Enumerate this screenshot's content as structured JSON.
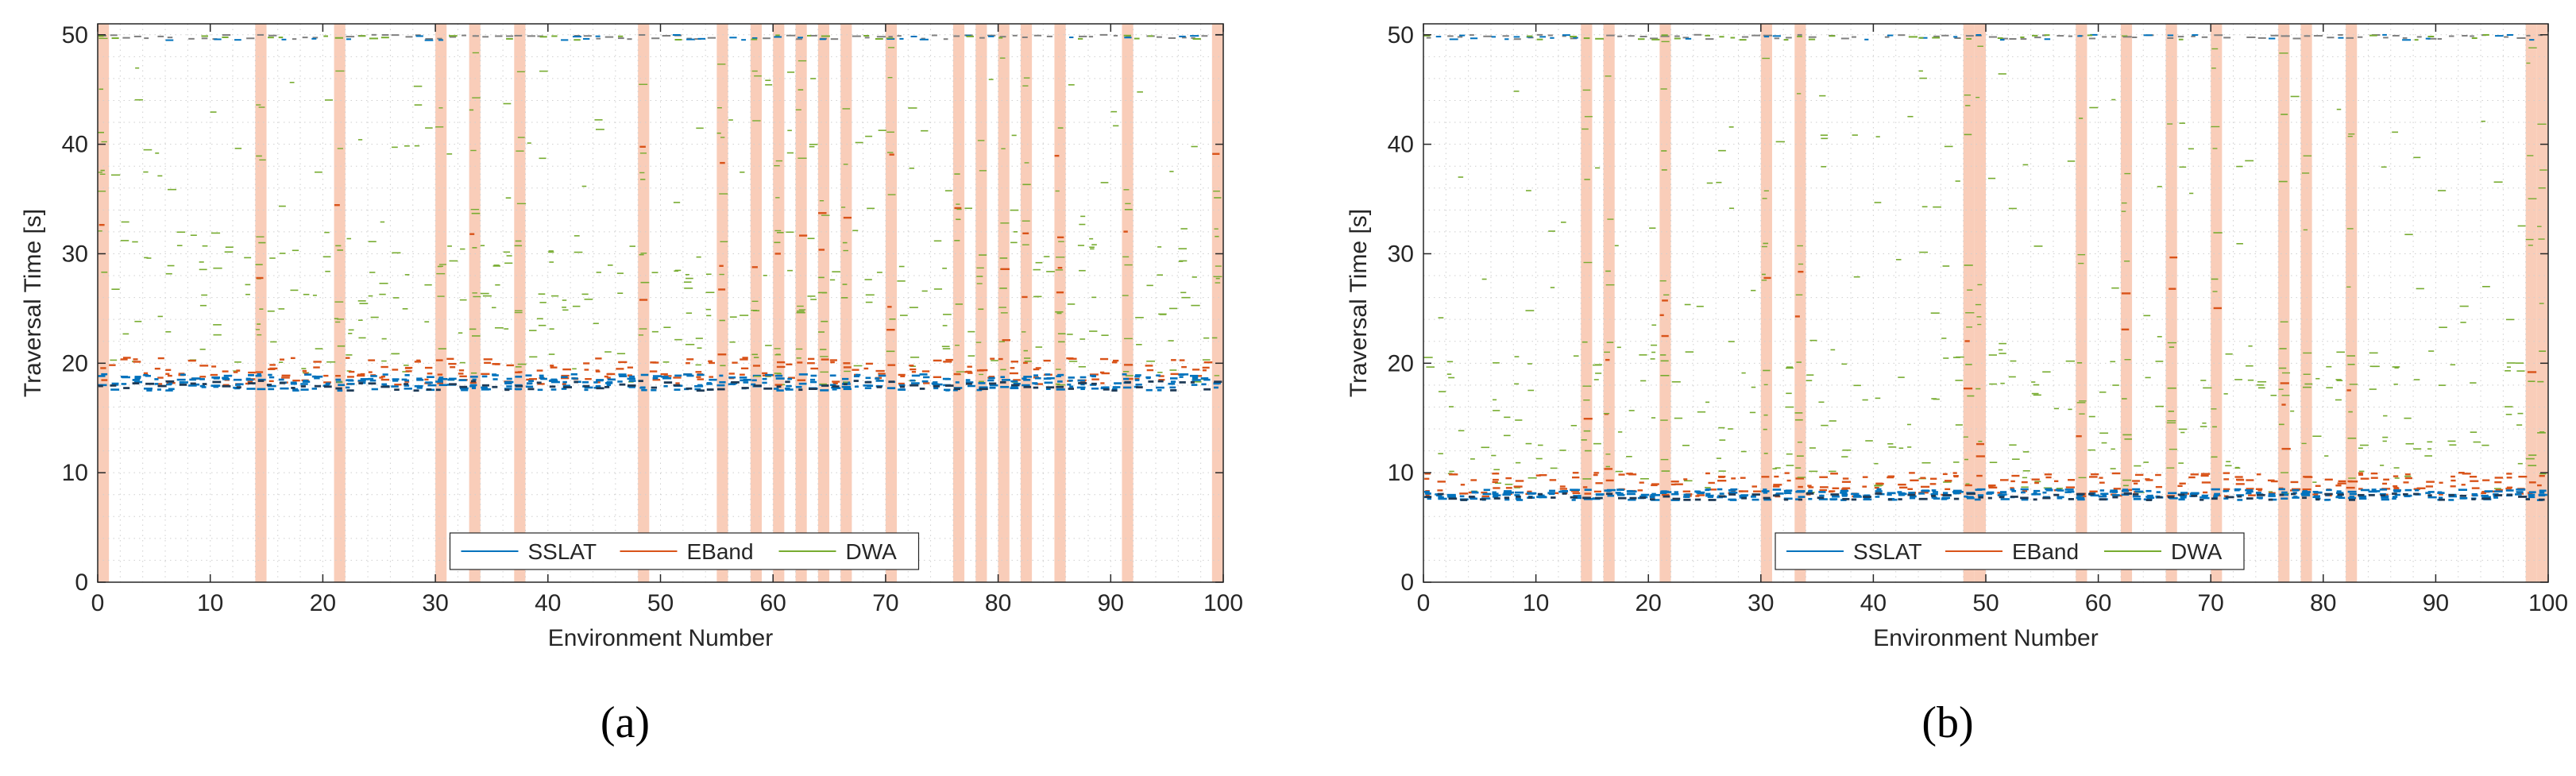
{
  "figure": {
    "panel_labels": [
      "(a)",
      "(b)"
    ]
  },
  "chart_data": [
    {
      "id": "a",
      "type": "scatter",
      "panel_label": "(a)",
      "title": "",
      "xlabel": "Environment Number",
      "ylabel": "Traversal Time [s]",
      "xlim": [
        0,
        100
      ],
      "ylim": [
        0,
        51
      ],
      "xticks": [
        0,
        10,
        20,
        30,
        40,
        50,
        60,
        70,
        80,
        90,
        100
      ],
      "yticks": [
        0,
        10,
        20,
        30,
        40,
        50
      ],
      "grid": true,
      "legend": {
        "location": "bottom-center",
        "entries": [
          "SSLAT",
          "EBand",
          "DWA"
        ]
      },
      "series_colors": {
        "SSLAT": "#0072bd",
        "EBand": "#d95319",
        "DWA": "#77ac30"
      },
      "failure_band_color": "#f9cdb9",
      "timeout_value": 50,
      "failed_environments": [
        0,
        14,
        21,
        30,
        33,
        37,
        48,
        55,
        58,
        60,
        62,
        64,
        66,
        70,
        76,
        78,
        80,
        82,
        85,
        91,
        99
      ],
      "series_summary": [
        {
          "name": "SSLAT",
          "typical_range": [
            17.5,
            19.0
          ]
        },
        {
          "name": "EBand",
          "typical_range": [
            18.0,
            20.5
          ]
        },
        {
          "name": "DWA",
          "typical_range": [
            18.0,
            50.0
          ]
        }
      ]
    },
    {
      "id": "b",
      "type": "scatter",
      "panel_label": "(b)",
      "title": "",
      "xlabel": "Environment Number",
      "ylabel": "Traversal Time [s]",
      "xlim": [
        0,
        100
      ],
      "ylim": [
        0,
        51
      ],
      "xticks": [
        0,
        10,
        20,
        30,
        40,
        50,
        60,
        70,
        80,
        90,
        100
      ],
      "yticks": [
        0,
        10,
        20,
        30,
        40,
        50
      ],
      "grid": true,
      "legend": {
        "location": "bottom-center",
        "entries": [
          "SSLAT",
          "EBand",
          "DWA"
        ]
      },
      "series_colors": {
        "SSLAT": "#0072bd",
        "EBand": "#d95319",
        "DWA": "#77ac30"
      },
      "failure_band_color": "#f9cdb9",
      "timeout_value": 50,
      "failed_environments": [
        14,
        16,
        21,
        30,
        33,
        48,
        49,
        58,
        62,
        66,
        70,
        76,
        78,
        82,
        98,
        99
      ],
      "series_summary": [
        {
          "name": "SSLAT",
          "typical_range": [
            7.5,
            8.5
          ]
        },
        {
          "name": "EBand",
          "typical_range": [
            7.8,
            10.0
          ]
        },
        {
          "name": "DWA",
          "typical_range": [
            8.0,
            50.0
          ]
        }
      ]
    }
  ]
}
